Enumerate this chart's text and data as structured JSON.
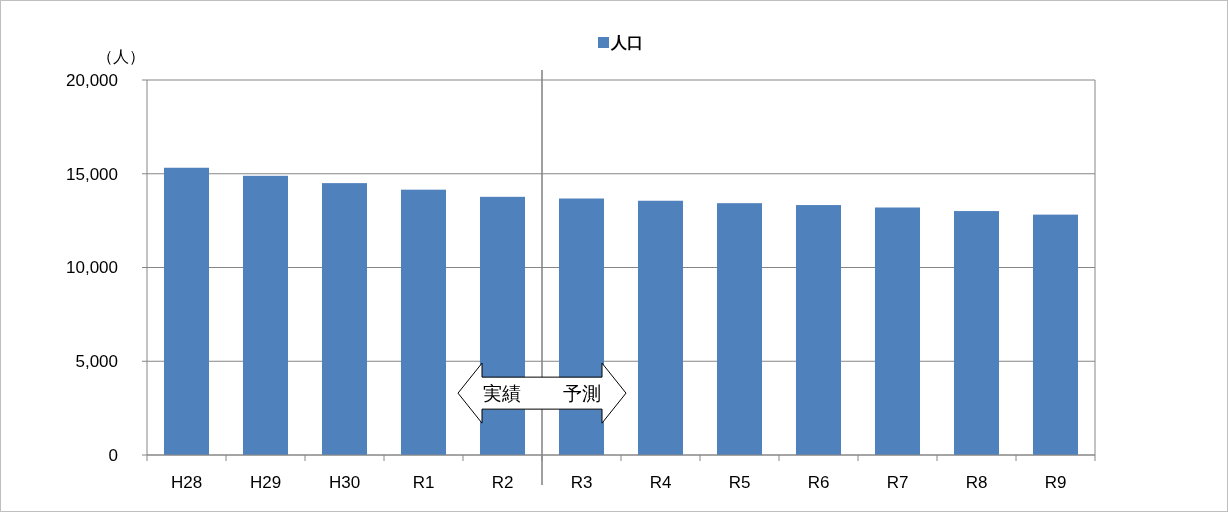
{
  "chart_data": {
    "type": "bar",
    "ylabel": "（人）",
    "categories": [
      "H28",
      "H29",
      "H30",
      "R1",
      "R2",
      "R3",
      "R4",
      "R5",
      "R6",
      "R7",
      "R8",
      "R9"
    ],
    "series": [
      {
        "name": "人口",
        "color": "#4f81bd",
        "values": [
          15320,
          14890,
          14500,
          14150,
          13770,
          13680,
          13560,
          13430,
          13330,
          13200,
          13010,
          12820
        ]
      }
    ],
    "ylim": [
      0,
      20000
    ],
    "yticks": [
      {
        "value": 0,
        "label": "0"
      },
      {
        "value": 5000,
        "label": "5,000"
      },
      {
        "value": 10000,
        "label": "10,000"
      },
      {
        "value": 15000,
        "label": "15,000"
      },
      {
        "value": 20000,
        "label": "20,000"
      }
    ],
    "grid": "y",
    "legend": "top",
    "ref_lines": [
      {
        "axis": "x",
        "value": "R3",
        "color": "#808080"
      }
    ],
    "annotations": [
      "実績",
      "予測"
    ]
  }
}
